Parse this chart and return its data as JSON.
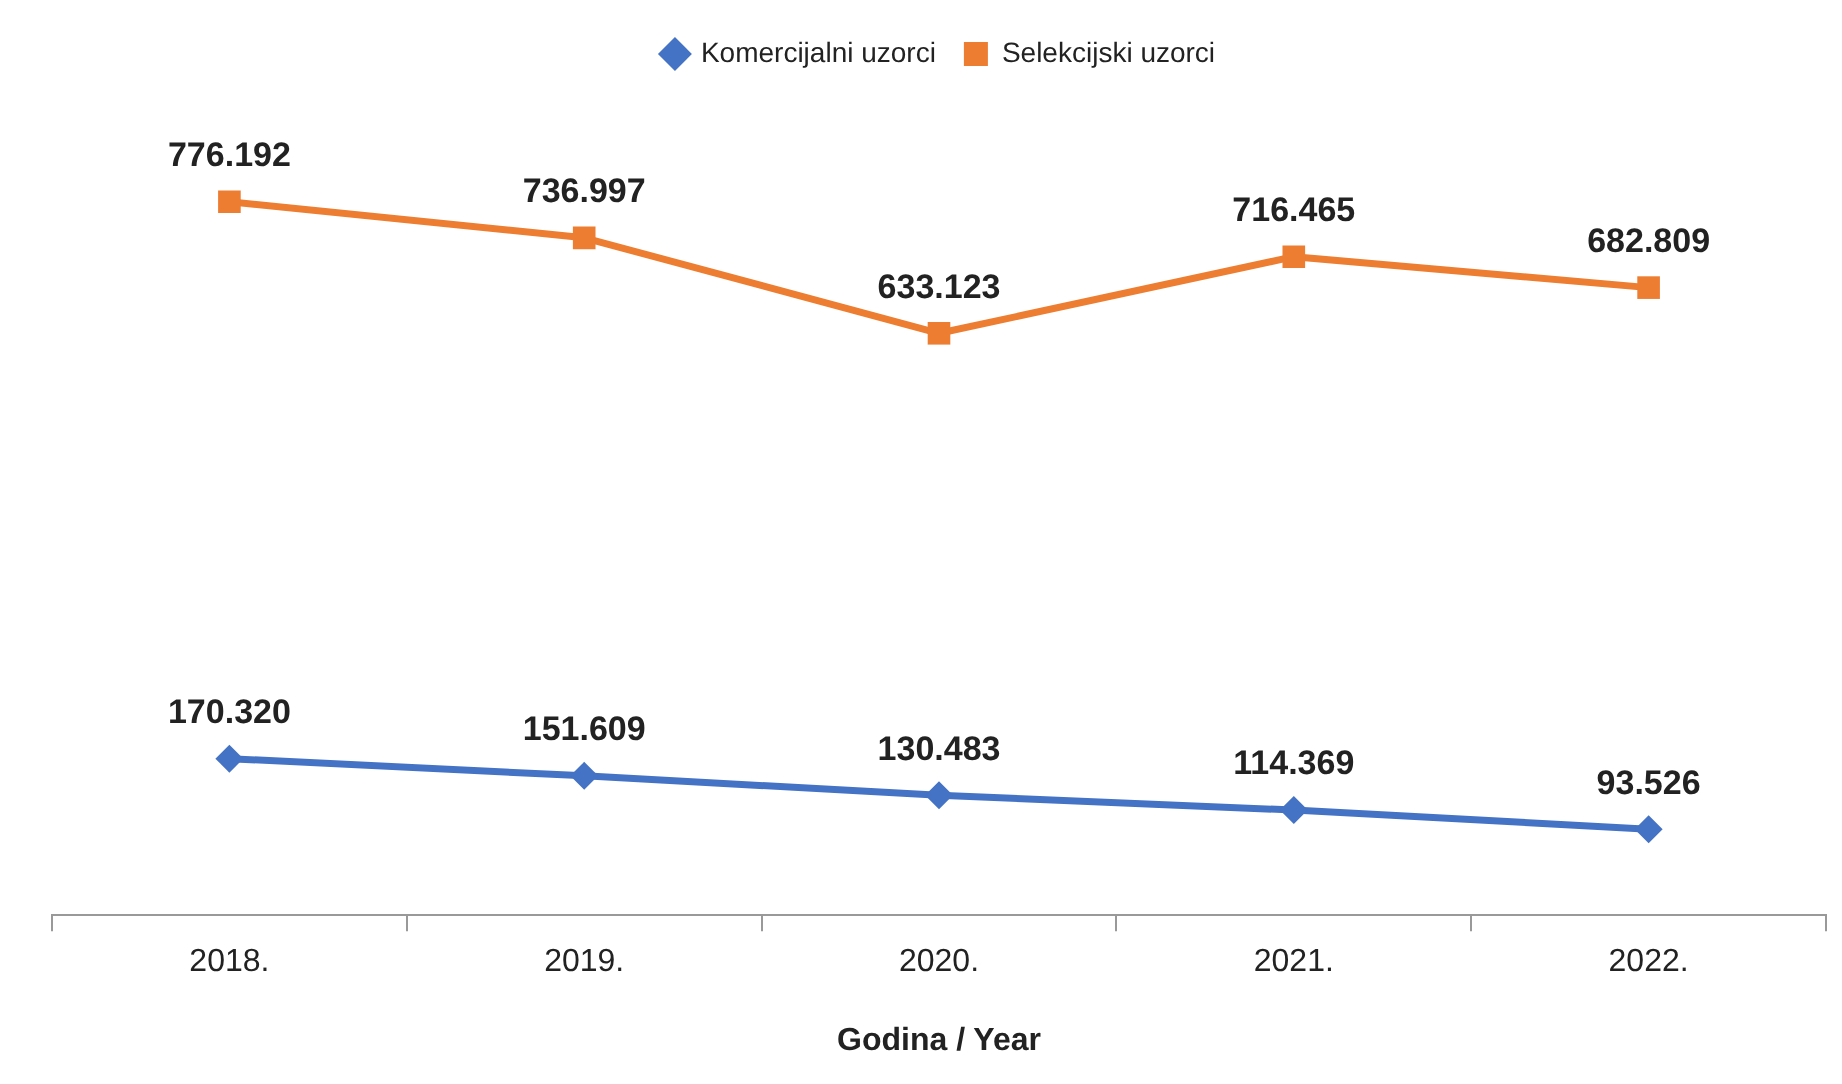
{
  "chart_data": {
    "type": "line",
    "xlabel": "Godina / Year",
    "categories": [
      "2018.",
      "2019.",
      "2020.",
      "2021.",
      "2022."
    ],
    "series": [
      {
        "name": "Komercijalni uzorci",
        "color": "#4472c4",
        "marker": "diamond",
        "values": [
          170320,
          151609,
          130483,
          114369,
          93526
        ],
        "value_labels": [
          "170.320",
          "151.609",
          "130.483",
          "114.369",
          "93.526"
        ]
      },
      {
        "name": "Selekcijski uzorci",
        "color": "#ed7d31",
        "marker": "square",
        "values": [
          776192,
          736997,
          633123,
          716465,
          682809
        ],
        "value_labels": [
          "776.192",
          "736.997",
          "633.123",
          "716.465",
          "682.809"
        ]
      }
    ],
    "legend": "top",
    "grid": false,
    "line_style": "solid",
    "tick_labels": "x"
  }
}
